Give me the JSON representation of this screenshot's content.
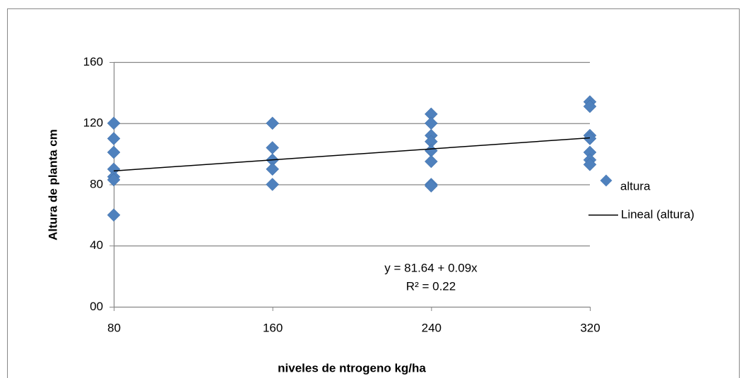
{
  "chart_data": {
    "type": "scatter",
    "xlabel": "niveles de ntrogeno kg/ha",
    "ylabel": "Altura de planta cm",
    "xlim": [
      80,
      320
    ],
    "xticks": [
      80,
      160,
      240,
      320
    ],
    "ylim": [
      0,
      160
    ],
    "yticks": [
      {
        "value": 0,
        "label": "00"
      },
      40,
      80,
      120,
      160
    ],
    "grid": true,
    "series": [
      {
        "name": "altura",
        "color": "#4f81bd",
        "x": [
          80,
          80,
          80,
          80,
          80,
          80,
          80,
          160,
          160,
          160,
          160,
          160,
          240,
          240,
          240,
          240,
          240,
          240,
          240,
          240,
          320,
          320,
          320,
          320,
          320,
          320,
          320
        ],
        "values": [
          120,
          110,
          101,
          90,
          85,
          83,
          60,
          120,
          104,
          96,
          90,
          80,
          126,
          120,
          112,
          108,
          102,
          95,
          80,
          79,
          134,
          131,
          112,
          110,
          101,
          96,
          93
        ]
      }
    ],
    "trendline": {
      "name": "Lineal (altura)",
      "color": "#000000",
      "intercept": 81.64,
      "slope": 0.09,
      "equation": "y = 81.64 + 0.09x",
      "r2_label": "R² = 0.22"
    },
    "legend": "right"
  }
}
